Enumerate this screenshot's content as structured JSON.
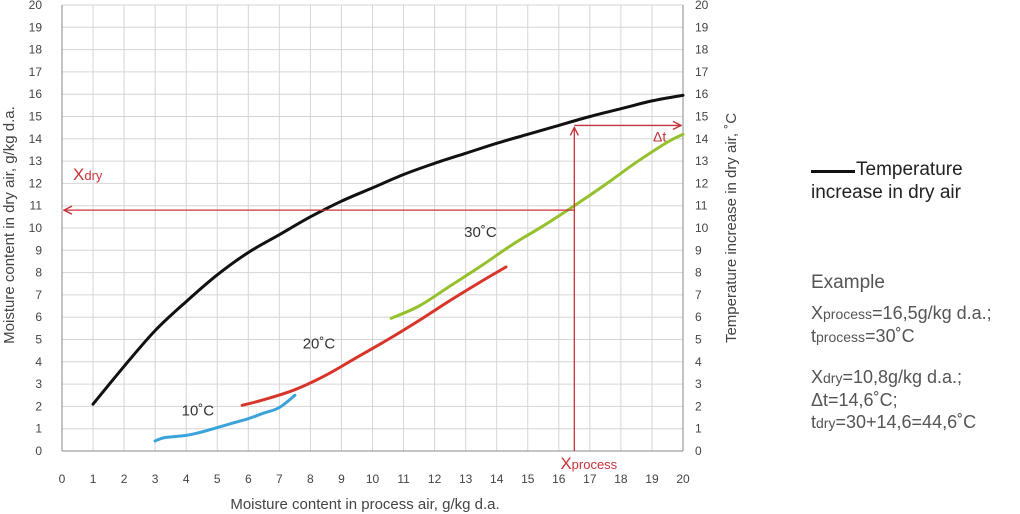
{
  "chart_data": {
    "type": "line",
    "xlabel": "Moisture content in process air, g/kg d.a.",
    "ylabel_left": "Moisture content in dry air, g/kg d.a.",
    "ylabel_right": "Temperature increase in dry air, ˚C",
    "xlim": [
      0,
      20
    ],
    "ylim": [
      0,
      20
    ],
    "x_ticks": [
      "0",
      "1",
      "2",
      "3",
      "4",
      "5",
      "6",
      "7",
      "8",
      "9",
      "10",
      "11",
      "12",
      "13",
      "14",
      "15",
      "16",
      "17",
      "18",
      "19",
      "20"
    ],
    "y_ticks": [
      "0",
      "1",
      "2",
      "3",
      "4",
      "5",
      "6",
      "7",
      "8",
      "9",
      "10",
      "11",
      "12",
      "13",
      "14",
      "15",
      "16",
      "17",
      "18",
      "19",
      "20"
    ],
    "grid": true,
    "series": [
      {
        "name": "Temperature increase in dry air",
        "color": "#111111",
        "label": "",
        "points": [
          [
            1,
            2.1
          ],
          [
            2,
            3.8
          ],
          [
            3,
            5.4
          ],
          [
            4,
            6.7
          ],
          [
            5,
            7.9
          ],
          [
            6,
            8.9
          ],
          [
            7,
            9.7
          ],
          [
            8,
            10.5
          ],
          [
            9,
            11.2
          ],
          [
            10,
            11.8
          ],
          [
            11,
            12.4
          ],
          [
            12,
            12.9
          ],
          [
            13,
            13.35
          ],
          [
            14,
            13.8
          ],
          [
            15,
            14.2
          ],
          [
            16,
            14.6
          ],
          [
            17,
            15.0
          ],
          [
            18,
            15.35
          ],
          [
            19,
            15.7
          ],
          [
            20,
            15.95
          ]
        ]
      },
      {
        "name": "10˚C",
        "color": "#3ba3da",
        "label": "10˚C",
        "label_at": [
          4.9,
          1.6
        ],
        "points": [
          [
            3.0,
            0.45
          ],
          [
            3.3,
            0.6
          ],
          [
            4.0,
            0.7
          ],
          [
            4.5,
            0.85
          ],
          [
            5.0,
            1.05
          ],
          [
            5.5,
            1.25
          ],
          [
            6.0,
            1.45
          ],
          [
            6.5,
            1.7
          ],
          [
            7.0,
            1.95
          ],
          [
            7.5,
            2.5
          ]
        ]
      },
      {
        "name": "20˚C",
        "color": "#d8352a",
        "label": "20˚C",
        "label_at": [
          8.8,
          4.6
        ],
        "points": [
          [
            5.8,
            2.05
          ],
          [
            6.5,
            2.3
          ],
          [
            7.5,
            2.75
          ],
          [
            8.5,
            3.4
          ],
          [
            9.5,
            4.2
          ],
          [
            10.5,
            5.0
          ],
          [
            11.5,
            5.85
          ],
          [
            12.5,
            6.75
          ],
          [
            13.5,
            7.6
          ],
          [
            14.3,
            8.25
          ]
        ]
      },
      {
        "name": "30˚C",
        "color": "#95c12f",
        "label": "30˚C",
        "label_at": [
          14.0,
          9.6
        ],
        "points": [
          [
            10.6,
            5.95
          ],
          [
            11.5,
            6.5
          ],
          [
            12.5,
            7.4
          ],
          [
            13.5,
            8.3
          ],
          [
            14.5,
            9.25
          ],
          [
            15.5,
            10.1
          ],
          [
            16.5,
            11.0
          ],
          [
            17.5,
            11.95
          ],
          [
            18.5,
            12.95
          ],
          [
            19.5,
            13.85
          ],
          [
            20.0,
            14.2
          ]
        ]
      }
    ],
    "annotations": {
      "x_dry_label": "X",
      "x_dry_sub": "dry",
      "x_process_label": "X",
      "x_process_sub": "process",
      "delta_t_label": "Δt",
      "x_process_value": 16.5,
      "x_dry_value": 10.8,
      "delta_t_value": 14.6,
      "color": "#c8323a"
    }
  },
  "legend": {
    "line1": "Temperature",
    "line2": "increase in dry air"
  },
  "example": {
    "title": "Example",
    "x_process_prefix": "X",
    "x_process_sub": "process",
    "x_process_value": "=16,5g/kg d.a.;",
    "t_process_prefix": "t",
    "t_process_sub": "process",
    "t_process_value": "=30˚C",
    "x_dry_prefix": "X",
    "x_dry_sub": "dry",
    "x_dry_value": "=10,8g/kg d.a.;",
    "delta_t_line": "Δt=14,6˚C;",
    "t_dry_prefix": "t",
    "t_dry_sub": "dry",
    "t_dry_value": "=30+14,6=44,6˚C"
  }
}
